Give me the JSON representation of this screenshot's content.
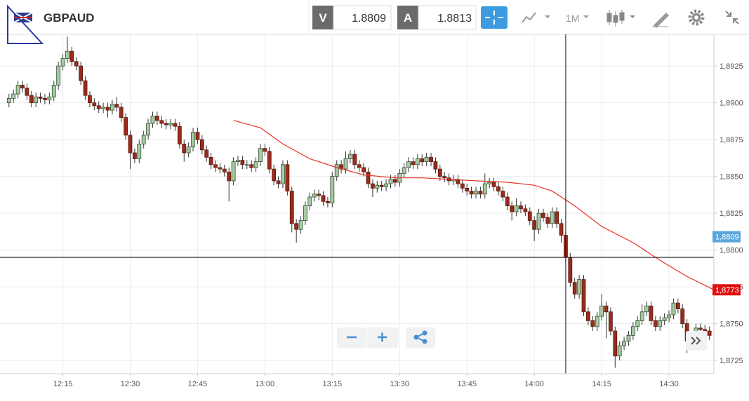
{
  "header": {
    "symbol": "GBPAUD",
    "bid_label": "V",
    "bid": 1.8809,
    "ask_label": "A",
    "ask": 1.8813,
    "timeframe": "1M"
  },
  "chart_data": {
    "type": "candlestick",
    "x": [
      "12:03",
      "12:04",
      "12:05",
      "12:06",
      "12:07",
      "12:08",
      "12:09",
      "12:10",
      "12:11",
      "12:12",
      "12:13",
      "12:14",
      "12:15",
      "12:16",
      "12:17",
      "12:18",
      "12:19",
      "12:20",
      "12:21",
      "12:22",
      "12:23",
      "12:24",
      "12:25",
      "12:26",
      "12:27",
      "12:28",
      "12:29",
      "12:30",
      "12:31",
      "12:32",
      "12:33",
      "12:34",
      "12:35",
      "12:36",
      "12:37",
      "12:38",
      "12:39",
      "12:40",
      "12:41",
      "12:42",
      "12:43",
      "12:44",
      "12:45",
      "12:46",
      "12:47",
      "12:48",
      "12:49",
      "12:50",
      "12:51",
      "12:52",
      "12:53",
      "12:54",
      "12:55",
      "12:56",
      "12:57",
      "12:58",
      "12:59",
      "13:00",
      "13:01",
      "13:02",
      "13:03",
      "13:04",
      "13:05",
      "13:06",
      "13:07",
      "13:08",
      "13:09",
      "13:10",
      "13:11",
      "13:12",
      "13:13",
      "13:14",
      "13:15",
      "13:16",
      "13:17",
      "13:18",
      "13:19",
      "13:20",
      "13:21",
      "13:22",
      "13:23",
      "13:24",
      "13:25",
      "13:26",
      "13:27",
      "13:28",
      "13:29",
      "13:30",
      "13:31",
      "13:32",
      "13:33",
      "13:34",
      "13:35",
      "13:36",
      "13:37",
      "13:38",
      "13:39",
      "13:40",
      "13:41",
      "13:42",
      "13:43",
      "13:44",
      "13:45",
      "13:46",
      "13:47",
      "13:48",
      "13:49",
      "13:50",
      "13:51",
      "13:52",
      "13:53",
      "13:54",
      "13:55",
      "13:56",
      "13:57",
      "13:58",
      "13:59",
      "14:00",
      "14:01",
      "14:02",
      "14:03",
      "14:04",
      "14:05",
      "14:06",
      "14:07",
      "14:08",
      "14:09",
      "14:10",
      "14:11",
      "14:12",
      "14:13",
      "14:14",
      "14:15",
      "14:16",
      "14:17",
      "14:18",
      "14:19",
      "14:20",
      "14:21",
      "14:22",
      "14:23",
      "14:24",
      "14:25",
      "14:26",
      "14:27",
      "14:28",
      "14:29",
      "14:30",
      "14:31",
      "14:32",
      "14:33",
      "14:34",
      "14:35",
      "14:36",
      "14:37",
      "14:38",
      "14:39"
    ],
    "open": [
      1.89,
      1.8903,
      1.8906,
      1.8912,
      1.891,
      1.8905,
      1.89,
      1.8904,
      1.8903,
      1.8902,
      1.8904,
      1.8912,
      1.8925,
      1.893,
      1.8935,
      1.8928,
      1.8925,
      1.8915,
      1.8905,
      1.89,
      1.8898,
      1.8896,
      1.8897,
      1.8895,
      1.8899,
      1.8897,
      1.889,
      1.8878,
      1.8866,
      1.8862,
      1.8872,
      1.8878,
      1.8886,
      1.8891,
      1.8888,
      1.8886,
      1.8885,
      1.8886,
      1.8884,
      1.8872,
      1.8866,
      1.887,
      1.888,
      1.8875,
      1.8868,
      1.8863,
      1.8858,
      1.8856,
      1.8855,
      1.8853,
      1.8847,
      1.886,
      1.8861,
      1.8858,
      1.8858,
      1.8856,
      1.886,
      1.8869,
      1.8867,
      1.8855,
      1.8847,
      1.8845,
      1.8858,
      1.884,
      1.8818,
      1.8814,
      1.882,
      1.883,
      1.8836,
      1.8838,
      1.8837,
      1.8833,
      1.8832,
      1.885,
      1.8858,
      1.8855,
      1.8862,
      1.8865,
      1.8858,
      1.8856,
      1.8853,
      1.8845,
      1.8842,
      1.8844,
      1.8843,
      1.8845,
      1.8848,
      1.8846,
      1.8852,
      1.8856,
      1.886,
      1.8858,
      1.8862,
      1.886,
      1.8863,
      1.886,
      1.8855,
      1.885,
      1.8849,
      1.8847,
      1.8848,
      1.8845,
      1.8842,
      1.884,
      1.8838,
      1.884,
      1.8838,
      1.8845,
      1.8846,
      1.8843,
      1.884,
      1.8836,
      1.883,
      1.8826,
      1.883,
      1.8828,
      1.8826,
      1.882,
      1.8814,
      1.8825,
      1.8822,
      1.8818,
      1.8826,
      1.8818,
      1.881,
      1.8795,
      1.8778,
      1.877,
      1.878,
      1.8758,
      1.8752,
      1.8748,
      1.8755,
      1.8762,
      1.8758,
      1.8745,
      1.8728,
      1.8735,
      1.8738,
      1.8742,
      1.8748,
      1.8752,
      1.8758,
      1.8762,
      1.8752,
      1.8748,
      1.8752,
      1.8754,
      1.8756,
      1.8764,
      1.876,
      1.875,
      1.8738,
      1.8742,
      1.8747,
      1.8746,
      1.8745
    ],
    "high": [
      1.8906,
      1.8909,
      1.8915,
      1.8915,
      1.8913,
      1.8908,
      1.8907,
      1.8907,
      1.8906,
      1.8907,
      1.8915,
      1.8928,
      1.8933,
      1.8945,
      1.8938,
      1.8931,
      1.8928,
      1.8918,
      1.8908,
      1.8903,
      1.8901,
      1.89,
      1.89,
      1.8902,
      1.8904,
      1.89,
      1.8893,
      1.8881,
      1.8869,
      1.8875,
      1.8881,
      1.8889,
      1.8894,
      1.8894,
      1.8891,
      1.8889,
      1.8889,
      1.8889,
      1.8887,
      1.8875,
      1.8873,
      1.8883,
      1.8883,
      1.8878,
      1.8871,
      1.8866,
      1.8861,
      1.8859,
      1.8858,
      1.8856,
      1.8863,
      1.8864,
      1.8864,
      1.8861,
      1.8861,
      1.8863,
      1.8872,
      1.8872,
      1.887,
      1.8858,
      1.885,
      1.8861,
      1.8861,
      1.8843,
      1.8821,
      1.8823,
      1.8833,
      1.8839,
      1.8841,
      1.8841,
      1.884,
      1.8836,
      1.8853,
      1.8861,
      1.8861,
      1.8867,
      1.8868,
      1.8868,
      1.8861,
      1.8859,
      1.8856,
      1.8848,
      1.8847,
      1.8847,
      1.8848,
      1.8851,
      1.8851,
      1.8855,
      1.8859,
      1.8863,
      1.8863,
      1.8865,
      1.8865,
      1.8866,
      1.8866,
      1.8863,
      1.8858,
      1.8853,
      1.8852,
      1.8851,
      1.8851,
      1.8848,
      1.8845,
      1.8843,
      1.8843,
      1.8843,
      1.8852,
      1.8849,
      1.8849,
      1.8846,
      1.8843,
      1.8839,
      1.8833,
      1.8835,
      1.8833,
      1.8831,
      1.8829,
      1.8823,
      1.8828,
      1.8828,
      1.8825,
      1.8829,
      1.8829,
      1.8821,
      1.8813,
      1.8798,
      1.8781,
      1.8783,
      1.8783,
      1.8761,
      1.8755,
      1.8758,
      1.877,
      1.8765,
      1.8761,
      1.8748,
      1.8738,
      1.8741,
      1.8745,
      1.8751,
      1.8755,
      1.8763,
      1.8765,
      1.8765,
      1.8755,
      1.8755,
      1.8757,
      1.8759,
      1.8767,
      1.8767,
      1.8763,
      1.8753,
      1.8745,
      1.875,
      1.875,
      1.8749,
      1.8748
    ],
    "low": [
      1.8897,
      1.89,
      1.8903,
      1.8907,
      1.8902,
      1.8897,
      1.8897,
      1.89,
      1.8899,
      1.8899,
      1.8901,
      1.8909,
      1.8922,
      1.8927,
      1.8925,
      1.8922,
      1.8912,
      1.8902,
      1.8897,
      1.8895,
      1.8893,
      1.8893,
      1.889,
      1.8892,
      1.8894,
      1.8887,
      1.8875,
      1.8855,
      1.8859,
      1.8859,
      1.8869,
      1.8875,
      1.8883,
      1.8885,
      1.8883,
      1.8882,
      1.8882,
      1.8881,
      1.8869,
      1.886,
      1.8863,
      1.8867,
      1.8872,
      1.8865,
      1.886,
      1.8855,
      1.8853,
      1.8852,
      1.885,
      1.8833,
      1.8844,
      1.8857,
      1.8855,
      1.8855,
      1.8853,
      1.8853,
      1.8857,
      1.8864,
      1.8852,
      1.8844,
      1.8842,
      1.8842,
      1.8837,
      1.8812,
      1.8805,
      1.8811,
      1.8817,
      1.8827,
      1.8833,
      1.8834,
      1.883,
      1.8829,
      1.8829,
      1.8847,
      1.8852,
      1.8852,
      1.8859,
      1.8855,
      1.8853,
      1.885,
      1.8842,
      1.8836,
      1.8839,
      1.884,
      1.884,
      1.8842,
      1.8843,
      1.8843,
      1.8849,
      1.8853,
      1.8855,
      1.8855,
      1.8857,
      1.8857,
      1.8857,
      1.8852,
      1.8847,
      1.8846,
      1.8844,
      1.8844,
      1.8842,
      1.8839,
      1.8837,
      1.8835,
      1.8835,
      1.8835,
      1.8835,
      1.8842,
      1.884,
      1.8837,
      1.8833,
      1.8827,
      1.882,
      1.8823,
      1.8825,
      1.8823,
      1.8817,
      1.8806,
      1.8811,
      1.8819,
      1.8815,
      1.8815,
      1.8815,
      1.8805,
      1.8792,
      1.8775,
      1.8767,
      1.8767,
      1.8755,
      1.8749,
      1.8745,
      1.8745,
      1.8752,
      1.874,
      1.8742,
      1.872,
      1.8725,
      1.8732,
      1.8735,
      1.8739,
      1.8745,
      1.8749,
      1.8755,
      1.8749,
      1.8745,
      1.8745,
      1.8749,
      1.8751,
      1.8753,
      1.8757,
      1.8747,
      1.873,
      1.8735,
      1.8739,
      1.8743,
      1.8742,
      1.8739
    ],
    "close": [
      1.8903,
      1.8906,
      1.8912,
      1.891,
      1.8905,
      1.89,
      1.8904,
      1.8903,
      1.8902,
      1.8904,
      1.8912,
      1.8925,
      1.893,
      1.8935,
      1.8928,
      1.8925,
      1.8915,
      1.8905,
      1.89,
      1.8898,
      1.8896,
      1.8897,
      1.8895,
      1.8899,
      1.8897,
      1.889,
      1.8878,
      1.8866,
      1.8862,
      1.8872,
      1.8878,
      1.8886,
      1.8891,
      1.8888,
      1.8886,
      1.8885,
      1.8886,
      1.8884,
      1.8872,
      1.8866,
      1.887,
      1.888,
      1.8875,
      1.8868,
      1.8863,
      1.8858,
      1.8856,
      1.8855,
      1.8853,
      1.8847,
      1.886,
      1.8861,
      1.8858,
      1.8858,
      1.8856,
      1.886,
      1.8869,
      1.8867,
      1.8855,
      1.8847,
      1.8845,
      1.8858,
      1.884,
      1.8818,
      1.8814,
      1.882,
      1.883,
      1.8836,
      1.8838,
      1.8837,
      1.8833,
      1.8832,
      1.885,
      1.8858,
      1.8855,
      1.8862,
      1.8865,
      1.8858,
      1.8856,
      1.8853,
      1.8845,
      1.8842,
      1.8844,
      1.8843,
      1.8845,
      1.8848,
      1.8846,
      1.8852,
      1.8856,
      1.886,
      1.8858,
      1.8862,
      1.886,
      1.8863,
      1.886,
      1.8855,
      1.885,
      1.8849,
      1.8847,
      1.8848,
      1.8845,
      1.8842,
      1.884,
      1.8838,
      1.884,
      1.8838,
      1.8845,
      1.8846,
      1.8843,
      1.884,
      1.8836,
      1.883,
      1.8826,
      1.883,
      1.8828,
      1.8826,
      1.882,
      1.8814,
      1.8825,
      1.8822,
      1.8818,
      1.8826,
      1.8818,
      1.881,
      1.8795,
      1.8778,
      1.877,
      1.878,
      1.8758,
      1.8752,
      1.8748,
      1.8755,
      1.8762,
      1.8758,
      1.8745,
      1.8728,
      1.8735,
      1.8738,
      1.8742,
      1.8748,
      1.8752,
      1.8758,
      1.8762,
      1.8752,
      1.8748,
      1.8752,
      1.8754,
      1.8756,
      1.8764,
      1.876,
      1.875,
      1.8738,
      1.8742,
      1.8747,
      1.8746,
      1.8745,
      1.8742
    ],
    "up_color": "#a9c9a4",
    "down_color": "#9a2b1c",
    "moving_average": {
      "color": "#e8302a",
      "x": [
        "12:53",
        "12:59",
        "13:04",
        "13:10",
        "13:16",
        "13:22",
        "13:29",
        "13:35",
        "13:41",
        "13:47",
        "13:54",
        "14:00",
        "14:04",
        "14:09",
        "14:15",
        "14:22",
        "14:28",
        "14:34",
        "14:40"
      ],
      "values": [
        1.8888,
        1.8883,
        1.8872,
        1.8862,
        1.8856,
        1.8851,
        1.8849,
        1.8849,
        1.8848,
        1.8847,
        1.8846,
        1.8844,
        1.884,
        1.883,
        1.8816,
        1.8805,
        1.8793,
        1.8782,
        1.8773
      ]
    },
    "xlim": [
      "12:01",
      "14:40"
    ],
    "xticks": [
      "12:15",
      "12:30",
      "12:45",
      "13:00",
      "13:15",
      "13:30",
      "13:45",
      "14:00",
      "14:15",
      "14:30"
    ],
    "ylim": [
      1.8716,
      1.89465
    ],
    "yticks": [
      {
        "value": 1.8725,
        "label": "1,8725"
      },
      {
        "value": 1.875,
        "label": "1,8750"
      },
      {
        "value": 1.8775,
        "label": "1,8775"
      },
      {
        "value": 1.88,
        "label": "1,8800"
      },
      {
        "value": 1.8825,
        "label": "1,8825"
      },
      {
        "value": 1.885,
        "label": "1,8850"
      },
      {
        "value": 1.8875,
        "label": "1,8875"
      },
      {
        "value": 1.89,
        "label": "1,8900"
      },
      {
        "value": 1.8925,
        "label": "1,8925"
      }
    ],
    "price_labels": [
      {
        "value": 1.8809,
        "label": "1,8809",
        "color": "#5ba6dd"
      },
      {
        "value": 1.8773,
        "label": "1,8773",
        "color": "#e0100f"
      }
    ],
    "crosshair": {
      "x": "14:07",
      "y": 1.8795
    },
    "grid": true
  }
}
